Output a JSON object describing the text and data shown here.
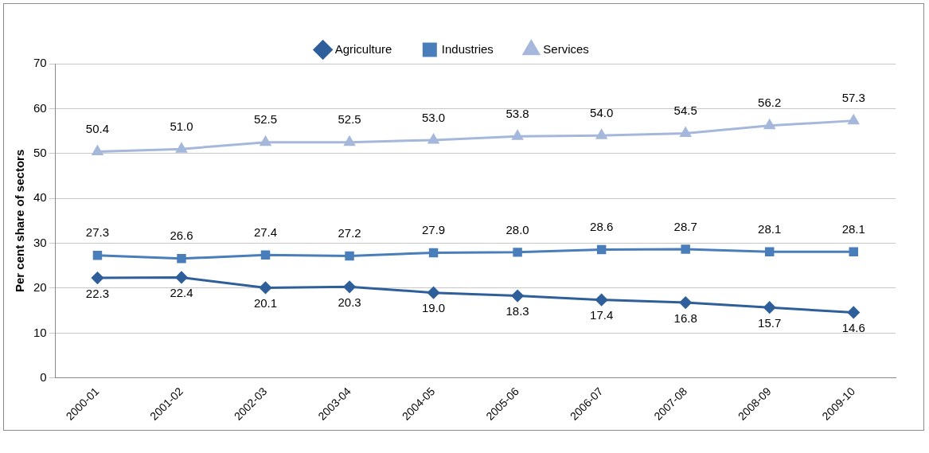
{
  "chart_data": {
    "type": "line",
    "ylabel": "Per cent share of sectors",
    "categories": [
      "2000-01",
      "2001-02",
      "2002-03",
      "2003-04",
      "2004-05",
      "2005-06",
      "2006-07",
      "2007-08",
      "2008-09",
      "2009-10"
    ],
    "series": [
      {
        "name": "Agriculture",
        "color": "#2f5f9b",
        "marker": "diamond",
        "values": [
          22.3,
          22.4,
          20.1,
          20.3,
          19.0,
          18.3,
          17.4,
          16.8,
          15.7,
          14.6
        ],
        "value_labels": [
          "22.3",
          "22.4",
          "20.1",
          "20.3",
          "19.0",
          "18.3",
          "17.4",
          "16.8",
          "15.7",
          "14.6"
        ]
      },
      {
        "name": "Industries",
        "color": "#4a7ebb",
        "marker": "square",
        "values": [
          27.3,
          26.6,
          27.4,
          27.2,
          27.9,
          28.0,
          28.6,
          28.7,
          28.1,
          28.1
        ],
        "value_labels": [
          "27.3",
          "26.6",
          "27.4",
          "27.2",
          "27.9",
          "28.0",
          "28.6",
          "28.7",
          "28.1",
          "28.1"
        ]
      },
      {
        "name": "Services",
        "color": "#a5b8dc",
        "marker": "triangle",
        "values": [
          50.4,
          51.0,
          52.5,
          52.5,
          53.0,
          53.8,
          54.0,
          54.5,
          56.2,
          57.3
        ],
        "value_labels": [
          "50.4",
          "51.0",
          "52.5",
          "52.5",
          "53.0",
          "53.8",
          "54.0",
          "54.5",
          "56.2",
          "57.3"
        ]
      }
    ],
    "ylim": [
      0,
      70
    ],
    "yticks": [
      0,
      10,
      20,
      30,
      40,
      50,
      60,
      70
    ],
    "grid": "y",
    "legend": "top",
    "line_style": "solid"
  }
}
